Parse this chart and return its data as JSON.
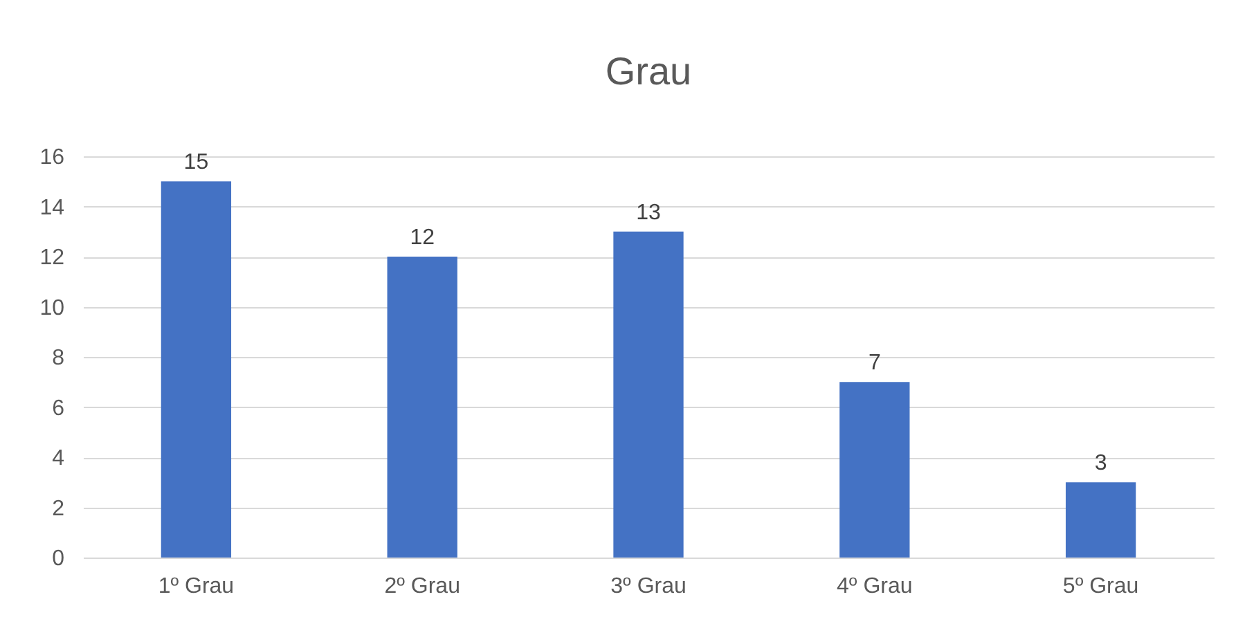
{
  "chart_data": {
    "type": "bar",
    "title": "Grau",
    "categories": [
      "1º Grau",
      "2º Grau",
      "3º Grau",
      "4º Grau",
      "5º Grau"
    ],
    "values": [
      15,
      12,
      13,
      7,
      3
    ],
    "color": "#4472c4",
    "ylim": [
      0,
      16
    ],
    "yticks": [
      0,
      2,
      4,
      6,
      8,
      10,
      12,
      14,
      16
    ],
    "grid": "y",
    "data_labels": true
  }
}
